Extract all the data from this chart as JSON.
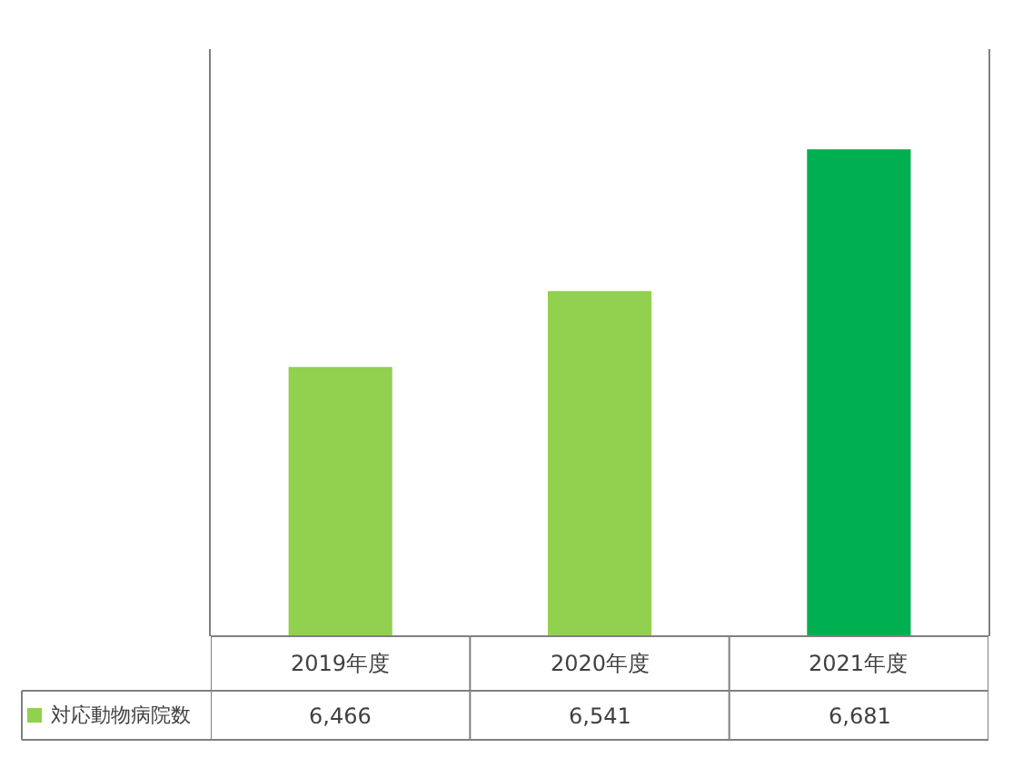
{
  "chart_data": {
    "type": "bar",
    "categories": [
      "2019年度",
      "2020年度",
      "2021年度"
    ],
    "series": [
      {
        "name": "対応動物病院数",
        "color": "#92d050",
        "colors": [
          "#92d050",
          "#92d050",
          "#00b050"
        ],
        "values": [
          6466,
          6541,
          6681
        ],
        "value_labels": [
          "6,466",
          "6,541",
          "6,681"
        ]
      }
    ],
    "ylim": [
      6200,
      6780
    ],
    "tick_labels": false,
    "legend": "bottom left"
  }
}
